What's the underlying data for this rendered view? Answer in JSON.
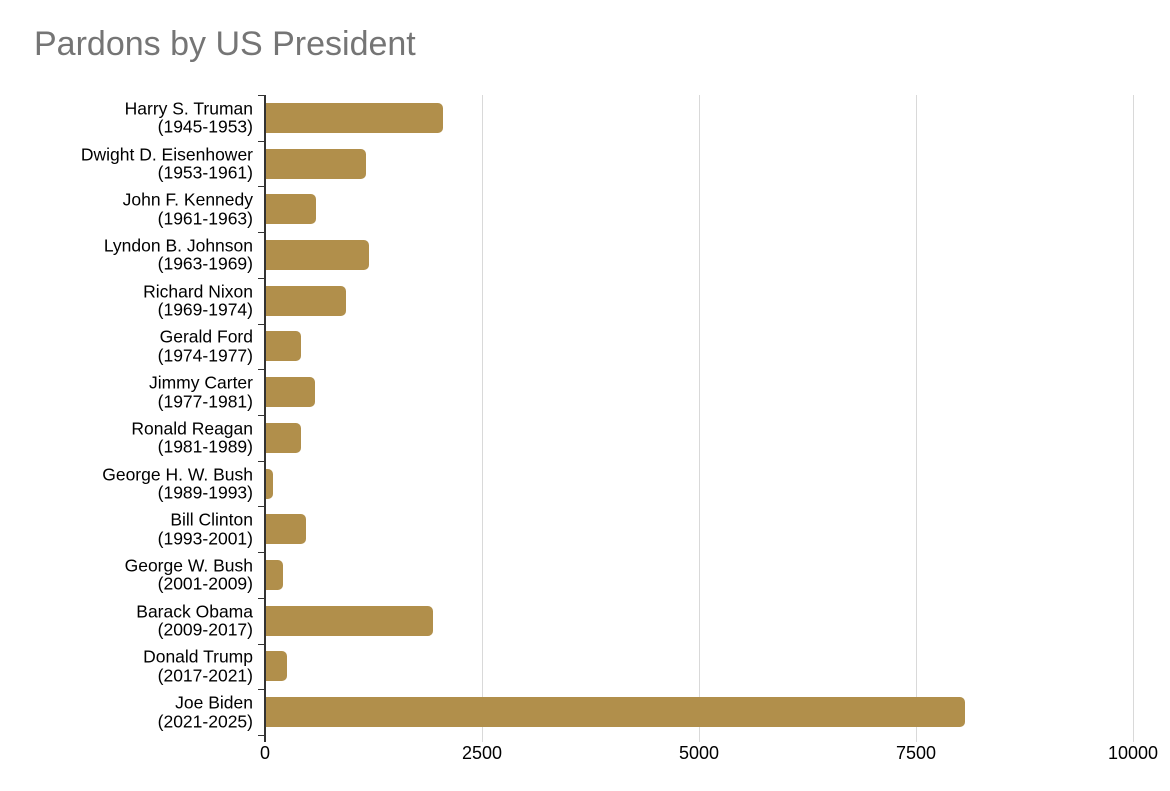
{
  "chart_data": {
    "type": "bar",
    "orientation": "horizontal",
    "title": "Pardons by US President",
    "xlabel": "",
    "ylabel": "",
    "xlim": [
      0,
      10000
    ],
    "xticks": [
      0,
      2500,
      5000,
      7500,
      10000
    ],
    "grid": true,
    "legend": "none",
    "categories": [
      {
        "name": "Harry S. Truman",
        "years": "(1945-1953)"
      },
      {
        "name": "Dwight D. Eisenhower",
        "years": "(1953-1961)"
      },
      {
        "name": "John F. Kennedy",
        "years": "(1961-1963)"
      },
      {
        "name": "Lyndon B. Johnson",
        "years": "(1963-1969)"
      },
      {
        "name": "Richard Nixon",
        "years": "(1969-1974)"
      },
      {
        "name": "Gerald Ford",
        "years": "(1974-1977)"
      },
      {
        "name": "Jimmy Carter",
        "years": "(1977-1981)"
      },
      {
        "name": "Ronald Reagan",
        "years": "(1981-1989)"
      },
      {
        "name": "George H. W. Bush",
        "years": "(1989-1993)"
      },
      {
        "name": "Bill Clinton",
        "years": "(1993-2001)"
      },
      {
        "name": "George W. Bush",
        "years": "(2001-2009)"
      },
      {
        "name": "Barack Obama",
        "years": "(2009-2017)"
      },
      {
        "name": "Donald Trump",
        "years": "(2017-2021)"
      },
      {
        "name": "Joe Biden",
        "years": "(2021-2025)"
      }
    ],
    "values": [
      2044,
      1157,
      575,
      1187,
      926,
      409,
      566,
      406,
      77,
      459,
      200,
      1927,
      238,
      8064
    ],
    "colors": {
      "bar": "#B18F4B",
      "title": "#757575",
      "label": "#000000",
      "gridline": "#D9D9D9",
      "axis": "#333333",
      "background": "#FFFFFF"
    }
  }
}
